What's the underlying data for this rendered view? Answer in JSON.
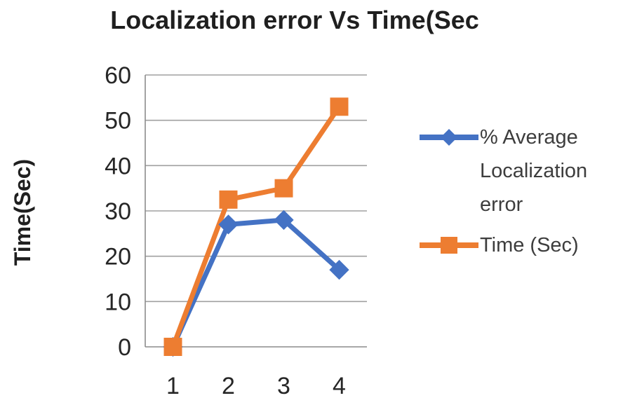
{
  "chart_data": {
    "type": "line",
    "title": "Localization error Vs Time(Sec",
    "xlabel": "",
    "ylabel": "Time(Sec)",
    "categories": [
      "1",
      "2",
      "3",
      "4"
    ],
    "ylim": [
      0,
      60
    ],
    "yticks": [
      0,
      10,
      20,
      30,
      40,
      50,
      60
    ],
    "grid": "horizontal",
    "legend_position": "right",
    "series": [
      {
        "name": "% Average Localization error",
        "values": [
          0,
          27,
          28,
          17
        ],
        "color": "#4472C4",
        "marker": "diamond"
      },
      {
        "name": "Time (Sec)",
        "values": [
          0,
          32.5,
          35,
          53
        ],
        "color": "#ED7D31",
        "marker": "square"
      }
    ],
    "colors": {
      "gridline": "#a0a0a0",
      "axis": "#8c8c8c",
      "tick_text": "#262626",
      "title_text": "#1f1f1f",
      "legend_text": "#3d3d3d"
    }
  }
}
